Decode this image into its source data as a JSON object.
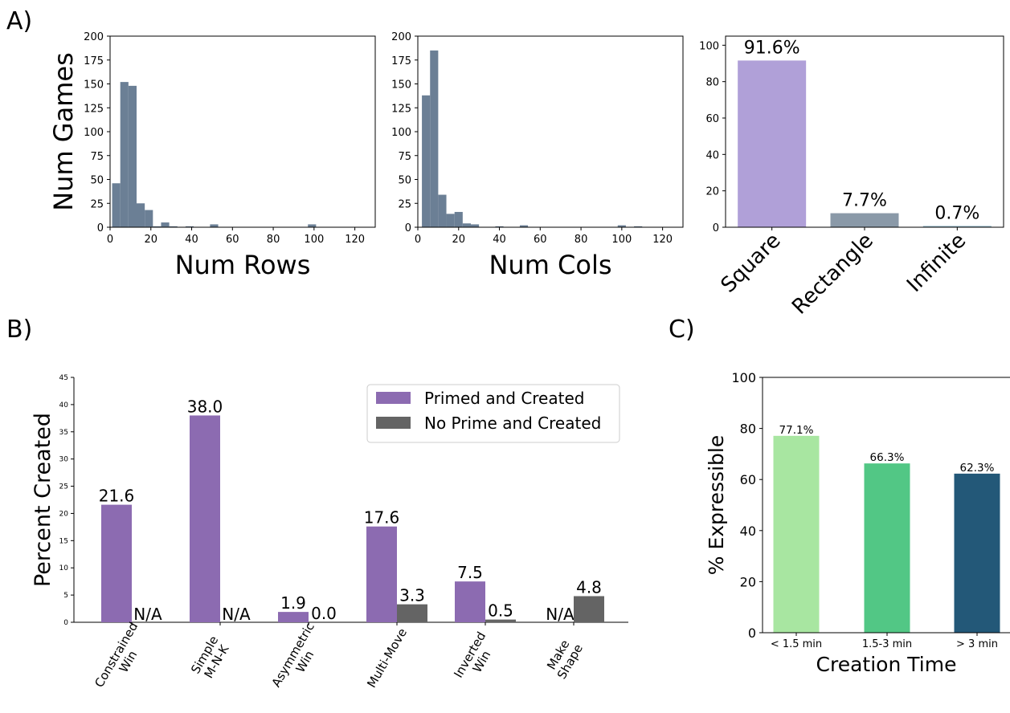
{
  "panel_labels": {
    "a": "A)",
    "b": "B)",
    "c": "C)"
  },
  "colors": {
    "hist_bar": "#6b7f95",
    "square": "#b0a0d8",
    "rectangle": "#8a99a8",
    "infinite": "#8fb3c2",
    "primed": "#8c6bb1",
    "no_prime": "#646464",
    "expr_low": "#a8e6a1",
    "expr_mid": "#52c785",
    "expr_high": "#235878"
  },
  "chart_data": [
    {
      "type": "bar",
      "subtype": "histogram",
      "panel": "A",
      "xlabel": "Num Rows",
      "ylabel": "Num Games",
      "xlim": [
        0,
        130
      ],
      "ylim": [
        0,
        200
      ],
      "xticks": [
        "0",
        "20",
        "40",
        "60",
        "80",
        "100",
        "120"
      ],
      "yticks": [
        "0",
        "25",
        "50",
        "75",
        "100",
        "125",
        "150",
        "175",
        "200"
      ],
      "bin_width": 4,
      "bins": [
        {
          "x0": 1,
          "count": 46
        },
        {
          "x0": 5,
          "count": 152
        },
        {
          "x0": 9,
          "count": 148
        },
        {
          "x0": 13,
          "count": 25
        },
        {
          "x0": 17,
          "count": 18
        },
        {
          "x0": 21,
          "count": 1
        },
        {
          "x0": 25,
          "count": 5
        },
        {
          "x0": 29,
          "count": 1
        },
        {
          "x0": 37,
          "count": 1
        },
        {
          "x0": 49,
          "count": 3
        },
        {
          "x0": 97,
          "count": 3
        }
      ]
    },
    {
      "type": "bar",
      "subtype": "histogram",
      "panel": "A",
      "xlabel": "Num Cols",
      "ylabel": "",
      "xlim": [
        0,
        130
      ],
      "ylim": [
        0,
        200
      ],
      "xticks": [
        "0",
        "20",
        "40",
        "60",
        "80",
        "100",
        "120"
      ],
      "yticks": [
        "0",
        "25",
        "50",
        "75",
        "100",
        "125",
        "150",
        "175",
        "200"
      ],
      "bin_width": 4,
      "bins": [
        {
          "x0": 2,
          "count": 138
        },
        {
          "x0": 6,
          "count": 185
        },
        {
          "x0": 10,
          "count": 34
        },
        {
          "x0": 14,
          "count": 14
        },
        {
          "x0": 18,
          "count": 16
        },
        {
          "x0": 22,
          "count": 4
        },
        {
          "x0": 26,
          "count": 3
        },
        {
          "x0": 38,
          "count": 1
        },
        {
          "x0": 50,
          "count": 2
        },
        {
          "x0": 98,
          "count": 2
        },
        {
          "x0": 106,
          "count": 1
        }
      ]
    },
    {
      "type": "bar",
      "panel": "A",
      "categories": [
        "Square",
        "Rectangle",
        "Infinite"
      ],
      "values": [
        91.6,
        7.7,
        0.7
      ],
      "labels": [
        "91.6%",
        "7.7%",
        "0.7%"
      ],
      "ylim": [
        0,
        105
      ],
      "yticks": [
        "0",
        "20",
        "40",
        "60",
        "80",
        "100"
      ]
    },
    {
      "type": "bar",
      "panel": "B",
      "ylabel": "Percent Created",
      "ylim": [
        0,
        45
      ],
      "yticks": [
        "0",
        "5",
        "10",
        "15",
        "20",
        "25",
        "30",
        "35",
        "40",
        "45"
      ],
      "categories": [
        [
          "Constrained",
          "Win"
        ],
        [
          "Simple",
          "M-N-K"
        ],
        [
          "Asymmetric",
          "Win"
        ],
        [
          "Multi-Move"
        ],
        [
          "Inverted",
          "Win"
        ],
        [
          "Make",
          "Shape"
        ]
      ],
      "legend_position": "top-right",
      "series": [
        {
          "name": "Primed and Created",
          "values": [
            21.6,
            38.0,
            1.9,
            17.6,
            7.5,
            null
          ],
          "labels": [
            "21.6",
            "38.0",
            "1.9",
            "17.6",
            "7.5",
            "N/A"
          ]
        },
        {
          "name": "No Prime and Created",
          "values": [
            null,
            null,
            0.0,
            3.3,
            0.5,
            4.8
          ],
          "labels": [
            "N/A",
            "N/A",
            "0.0",
            "3.3",
            "0.5",
            "4.8"
          ]
        }
      ]
    },
    {
      "type": "bar",
      "panel": "C",
      "xlabel": "Creation Time",
      "ylabel": "% Expressible",
      "ylim": [
        0,
        100
      ],
      "yticks": [
        "0",
        "20",
        "40",
        "60",
        "80",
        "100"
      ],
      "categories": [
        "< 1.5 min",
        "1.5-3 min",
        "> 3 min"
      ],
      "values": [
        77.1,
        66.3,
        62.3
      ],
      "labels": [
        "77.1%",
        "66.3%",
        "62.3%"
      ]
    }
  ]
}
